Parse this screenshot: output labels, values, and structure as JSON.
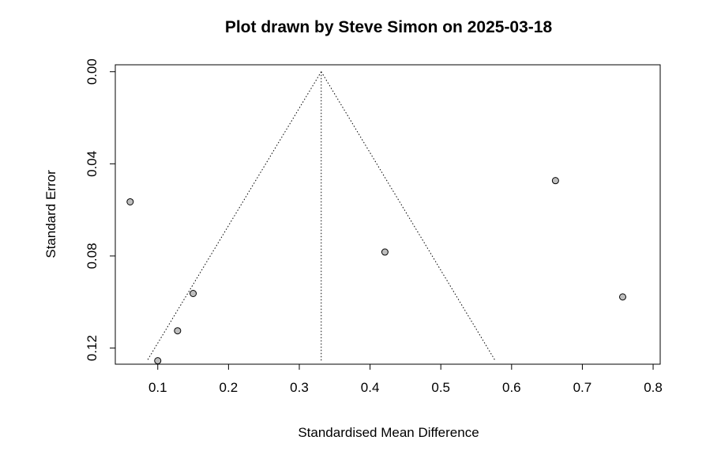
{
  "chart_data": {
    "type": "scatter",
    "subtype": "funnel-plot",
    "title": "Plot drawn by Steve Simon on 2025-03-18",
    "xlabel": "Standardised Mean Difference",
    "ylabel": "Standard Error",
    "xlim": [
      0.04,
      0.81
    ],
    "ylim": [
      0.127,
      -0.003
    ],
    "y_axis_reversed": true,
    "x_ticks": [
      "0.1",
      "0.2",
      "0.3",
      "0.4",
      "0.5",
      "0.6",
      "0.7",
      "0.8"
    ],
    "x_tick_values": [
      0.1,
      0.2,
      0.3,
      0.4,
      0.5,
      0.6,
      0.7,
      0.8
    ],
    "y_ticks": [
      "0.00",
      "0.04",
      "0.08",
      "0.12"
    ],
    "y_tick_values": [
      0.0,
      0.04,
      0.08,
      0.12
    ],
    "pooled_estimate": 0.331,
    "funnel_max_se": 0.1255,
    "points": [
      {
        "x": 0.061,
        "y": 0.0565
      },
      {
        "x": 0.1,
        "y": 0.1255
      },
      {
        "x": 0.128,
        "y": 0.1125
      },
      {
        "x": 0.15,
        "y": 0.0963
      },
      {
        "x": 0.421,
        "y": 0.0783
      },
      {
        "x": 0.662,
        "y": 0.0473
      },
      {
        "x": 0.757,
        "y": 0.0978
      }
    ],
    "grid": false,
    "point_color": "#bebebe",
    "point_stroke": "#000000"
  }
}
